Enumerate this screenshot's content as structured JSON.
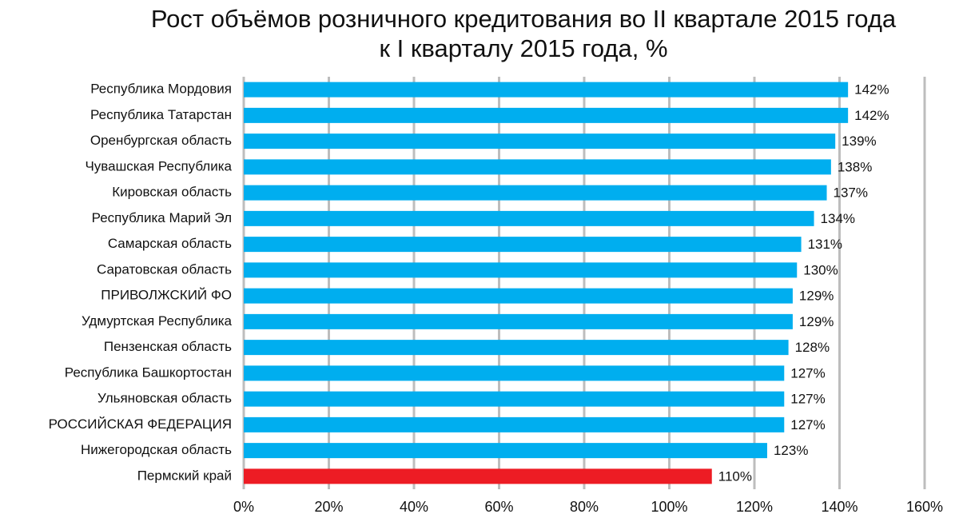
{
  "chart_data": {
    "type": "hbar",
    "title": [
      "Рост объёмов розничного кредитования во II квартале 2015 года",
      "к I кварталу 2015 года, %"
    ],
    "categories": [
      "Республика Мордовия",
      "Республика Татарстан",
      "Оренбургская область",
      "Чувашская Республика",
      "Кировская область",
      "Республика Марий Эл",
      "Самарская область",
      "Саратовская область",
      "ПРИВОЛЖСКИЙ ФО",
      "Удмуртская Республика",
      "Пензенская область",
      "Республика Башкортостан",
      "Ульяновская область",
      "РОССИЙСКАЯ ФЕДЕРАЦИЯ",
      "Нижегородская область",
      "Пермский край"
    ],
    "values": [
      142,
      142,
      139,
      138,
      137,
      134,
      131,
      130,
      129,
      129,
      128,
      127,
      127,
      127,
      123,
      110
    ],
    "value_labels": [
      "142%",
      "142%",
      "139%",
      "138%",
      "137%",
      "134%",
      "131%",
      "130%",
      "129%",
      "129%",
      "128%",
      "127%",
      "127%",
      "127%",
      "123%",
      "110%"
    ],
    "colors": [
      "#00aeef",
      "#00aeef",
      "#00aeef",
      "#00aeef",
      "#00aeef",
      "#00aeef",
      "#00aeef",
      "#00aeef",
      "#00aeef",
      "#00aeef",
      "#00aeef",
      "#00aeef",
      "#00aeef",
      "#00aeef",
      "#00aeef",
      "#ed1c24"
    ],
    "xlim": [
      0,
      160
    ],
    "xticks": [
      {
        "value": 0,
        "label": "0%"
      },
      {
        "value": 20,
        "label": "20%"
      },
      {
        "value": 40,
        "label": "40%"
      },
      {
        "value": 60,
        "label": "60%"
      },
      {
        "value": 80,
        "label": "80%"
      },
      {
        "value": 100,
        "label": "100%"
      },
      {
        "value": 120,
        "label": "120%"
      },
      {
        "value": 140,
        "label": "140%"
      },
      {
        "value": 160,
        "label": "160%"
      }
    ],
    "grid": true
  }
}
